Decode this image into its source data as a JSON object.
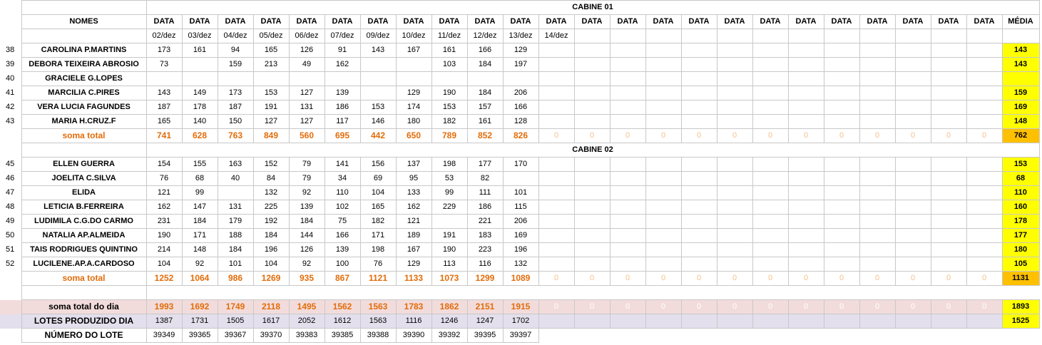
{
  "sheet": {
    "cabine1_title": "CABINE 01",
    "cabine2_title": "CABINE 02",
    "names_header": "NOMES",
    "data_header": "DATA",
    "media_header": "MÉDIA",
    "dates": [
      "02/dez",
      "03/dez",
      "04/dez",
      "05/dez",
      "06/dez",
      "07/dez",
      "09/dez",
      "10/dez",
      "11/dez",
      "12/dez",
      "13/dez",
      "14/dez",
      "",
      "",
      "",
      "",
      "",
      "",
      "",
      "",
      "",
      ""
    ],
    "cabine1_rows": [
      {
        "num": "38",
        "name": "CAROLINA P.MARTINS",
        "values": [
          "173",
          "161",
          "94",
          "165",
          "126",
          "91",
          "143",
          "167",
          "161",
          "166",
          "129"
        ],
        "avg": "143"
      },
      {
        "num": "39",
        "name": "DEBORA TEIXEIRA ABROSIO",
        "values": [
          "73",
          "",
          "159",
          "213",
          "49",
          "162",
          "",
          "",
          "103",
          "184",
          "197"
        ],
        "avg": "143"
      },
      {
        "num": "40",
        "name": "GRACIELE G.LOPES",
        "values": [
          "",
          "",
          "",
          "",
          "",
          "",
          "",
          "",
          "",
          "",
          ""
        ],
        "avg": ""
      },
      {
        "num": "41",
        "name": "MARCILIA C.PIRES",
        "values": [
          "143",
          "149",
          "173",
          "153",
          "127",
          "139",
          "",
          "129",
          "190",
          "184",
          "206"
        ],
        "avg": "159"
      },
      {
        "num": "42",
        "name": "VERA LUCIA FAGUNDES",
        "values": [
          "187",
          "178",
          "187",
          "191",
          "131",
          "186",
          "153",
          "174",
          "153",
          "157",
          "166"
        ],
        "avg": "169"
      },
      {
        "num": "43",
        "name": "MARIA H.CRUZ.F",
        "values": [
          "165",
          "140",
          "150",
          "127",
          "127",
          "117",
          "146",
          "180",
          "182",
          "161",
          "128"
        ],
        "avg": "148"
      }
    ],
    "cabine1_sum": {
      "label": "soma total",
      "values": [
        "741",
        "628",
        "763",
        "849",
        "560",
        "695",
        "442",
        "650",
        "789",
        "852",
        "826"
      ],
      "avg": "762"
    },
    "cabine2_rows": [
      {
        "num": "45",
        "name": "ELLEN GUERRA",
        "values": [
          "154",
          "155",
          "163",
          "152",
          "79",
          "141",
          "156",
          "137",
          "198",
          "177",
          "170"
        ],
        "avg": "153"
      },
      {
        "num": "46",
        "name": "JOELITA C.SILVA",
        "values": [
          "76",
          "68",
          "40",
          "84",
          "79",
          "34",
          "69",
          "95",
          "53",
          "82",
          ""
        ],
        "avg": "68"
      },
      {
        "num": "47",
        "name": "ELIDA",
        "values": [
          "121",
          "99",
          "",
          "132",
          "92",
          "110",
          "104",
          "133",
          "99",
          "111",
          "101"
        ],
        "avg": "110"
      },
      {
        "num": "48",
        "name": "LETICIA B.FERREIRA",
        "values": [
          "162",
          "147",
          "131",
          "225",
          "139",
          "102",
          "165",
          "162",
          "229",
          "186",
          "115"
        ],
        "avg": "160"
      },
      {
        "num": "49",
        "name": "LUDIMILA C.G.DO CARMO",
        "values": [
          "231",
          "184",
          "179",
          "192",
          "184",
          "75",
          "182",
          "121",
          "",
          "221",
          "206"
        ],
        "avg": "178"
      },
      {
        "num": "50",
        "name": "NATALIA AP.ALMEIDA",
        "values": [
          "190",
          "171",
          "188",
          "184",
          "144",
          "166",
          "171",
          "189",
          "191",
          "183",
          "169"
        ],
        "avg": "177"
      },
      {
        "num": "51",
        "name": "TAIS RODRIGUES QUINTINO",
        "values": [
          "214",
          "148",
          "184",
          "196",
          "126",
          "139",
          "198",
          "167",
          "190",
          "223",
          "196"
        ],
        "avg": "180"
      },
      {
        "num": "52",
        "name": "LUCILENE.AP.A.CARDOSO",
        "values": [
          "104",
          "92",
          "101",
          "104",
          "92",
          "100",
          "76",
          "129",
          "113",
          "116",
          "132"
        ],
        "avg": "105"
      }
    ],
    "cabine2_sum": {
      "label": "soma total",
      "values": [
        "1252",
        "1064",
        "986",
        "1269",
        "935",
        "867",
        "1121",
        "1133",
        "1073",
        "1299",
        "1089"
      ],
      "avg": "1131"
    },
    "day_total": {
      "label": "soma total  do dia",
      "values": [
        "1993",
        "1692",
        "1749",
        "2118",
        "1495",
        "1562",
        "1563",
        "1783",
        "1862",
        "2151",
        "1915"
      ],
      "avg": "1893"
    },
    "lotes": {
      "label": "LOTES PRODUZIDO DIA",
      "values": [
        "1387",
        "1731",
        "1505",
        "1617",
        "2052",
        "1612",
        "1563",
        "1116",
        "1246",
        "1247",
        "1702"
      ],
      "avg": "1525"
    },
    "numero": {
      "label": "NÚMERO DO LOTE",
      "values": [
        "39349",
        "39365",
        "39367",
        "39370",
        "39383",
        "39385",
        "39388",
        "39390",
        "39392",
        "39395",
        "39397"
      ]
    },
    "zero": "0",
    "total_date_cols": 24
  }
}
